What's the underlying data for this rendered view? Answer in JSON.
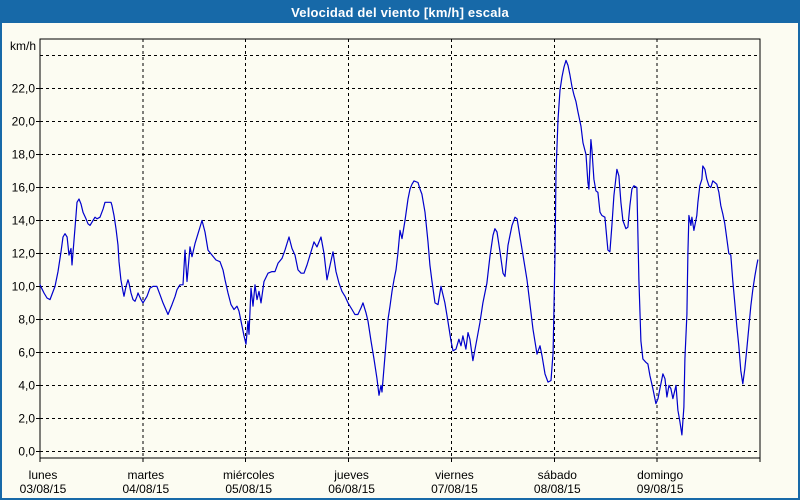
{
  "window": {
    "title": "Velocidad del viento [km/h] escala"
  },
  "colors": {
    "frame": "#1769A8",
    "titlebar_bg": "#1769A8",
    "title_text": "#FFFFFF",
    "background": "#FCFCF2",
    "plot_border": "#000000",
    "gridline": "#000000",
    "line": "#0000CC",
    "tick_text": "#000000"
  },
  "chart_data": {
    "type": "line",
    "title": "Velocidad del viento [km/h] escala",
    "ylabel": "km/h",
    "ylim": [
      -0.4,
      25.0
    ],
    "grid": "dashed",
    "legend": "none",
    "y_gridline_step": 2,
    "y_gridline_max": 24,
    "y_tick_labels": [
      "0,0",
      "2,0",
      "4,0",
      "6,0",
      "8,0",
      "10,0",
      "12,0",
      "14,0",
      "16,0",
      "18,0",
      "20,0",
      "22,0"
    ],
    "x_range_days": [
      0,
      7
    ],
    "x_categories": [
      {
        "weekday": "lunes",
        "date": "03/08/15"
      },
      {
        "weekday": "martes",
        "date": "04/08/15"
      },
      {
        "weekday": "miércoles",
        "date": "05/08/15"
      },
      {
        "weekday": "jueves",
        "date": "06/08/15"
      },
      {
        "weekday": "viernes",
        "date": "07/08/15"
      },
      {
        "weekday": "sábado",
        "date": "08/08/15"
      },
      {
        "weekday": "domingo",
        "date": "09/08/15"
      }
    ],
    "series": [
      {
        "name": "Velocidad del viento",
        "color": "#0000CC",
        "points": [
          [
            0,
            10.1
          ],
          [
            0.039,
            9.6
          ],
          [
            0.068,
            9.3
          ],
          [
            0.097,
            9.2
          ],
          [
            0.146,
            10.0
          ],
          [
            0.175,
            10.9
          ],
          [
            0.204,
            12.1
          ],
          [
            0.224,
            13.0
          ],
          [
            0.243,
            13.2
          ],
          [
            0.263,
            13.0
          ],
          [
            0.282,
            11.9
          ],
          [
            0.301,
            12.3
          ],
          [
            0.311,
            11.3
          ],
          [
            0.331,
            12.8
          ],
          [
            0.35,
            14.3
          ],
          [
            0.36,
            15.1
          ],
          [
            0.379,
            15.3
          ],
          [
            0.399,
            15.0
          ],
          [
            0.418,
            14.5
          ],
          [
            0.447,
            14.1
          ],
          [
            0.467,
            13.8
          ],
          [
            0.486,
            13.7
          ],
          [
            0.515,
            14.0
          ],
          [
            0.535,
            14.2
          ],
          [
            0.554,
            14.1
          ],
          [
            0.583,
            14.2
          ],
          [
            0.613,
            14.7
          ],
          [
            0.632,
            15.1
          ],
          [
            0.651,
            15.1
          ],
          [
            0.69,
            15.1
          ],
          [
            0.7,
            14.9
          ],
          [
            0.719,
            14.3
          ],
          [
            0.739,
            13.5
          ],
          [
            0.758,
            12.5
          ],
          [
            0.768,
            11.5
          ],
          [
            0.787,
            10.4
          ],
          [
            0.807,
            9.7
          ],
          [
            0.817,
            9.4
          ],
          [
            0.836,
            10.0
          ],
          [
            0.856,
            10.4
          ],
          [
            0.865,
            10.2
          ],
          [
            0.885,
            9.6
          ],
          [
            0.904,
            9.2
          ],
          [
            0.924,
            9.1
          ],
          [
            0.943,
            9.4
          ],
          [
            0.953,
            9.6
          ],
          [
            0.982,
            9.2
          ],
          [
            1.001,
            9.0
          ],
          [
            1.04,
            9.4
          ],
          [
            1.069,
            9.9
          ],
          [
            1.099,
            10.0
          ],
          [
            1.137,
            10.0
          ],
          [
            1.167,
            9.5
          ],
          [
            1.196,
            9.0
          ],
          [
            1.244,
            8.3
          ],
          [
            1.283,
            8.9
          ],
          [
            1.313,
            9.4
          ],
          [
            1.332,
            9.8
          ],
          [
            1.361,
            10.1
          ],
          [
            1.39,
            10.1
          ],
          [
            1.41,
            12.2
          ],
          [
            1.429,
            10.3
          ],
          [
            1.458,
            12.4
          ],
          [
            1.478,
            11.8
          ],
          [
            1.507,
            12.6
          ],
          [
            1.536,
            13.2
          ],
          [
            1.575,
            14.0
          ],
          [
            1.604,
            13.3
          ],
          [
            1.633,
            12.2
          ],
          [
            1.672,
            11.9
          ],
          [
            1.711,
            11.6
          ],
          [
            1.75,
            11.5
          ],
          [
            1.779,
            11.0
          ],
          [
            1.799,
            10.4
          ],
          [
            1.828,
            9.6
          ],
          [
            1.857,
            8.9
          ],
          [
            1.886,
            8.6
          ],
          [
            1.915,
            8.8
          ],
          [
            1.935,
            8.5
          ],
          [
            1.964,
            7.6
          ],
          [
            1.983,
            7.0
          ],
          [
            2.003,
            6.5
          ],
          [
            2.022,
            7.9
          ],
          [
            2.032,
            7.1
          ],
          [
            2.051,
            9.9
          ],
          [
            2.071,
            8.8
          ],
          [
            2.09,
            10.1
          ],
          [
            2.11,
            9.2
          ],
          [
            2.129,
            9.7
          ],
          [
            2.149,
            9.0
          ],
          [
            2.178,
            10.3
          ],
          [
            2.217,
            10.8
          ],
          [
            2.256,
            10.9
          ],
          [
            2.285,
            10.9
          ],
          [
            2.314,
            11.4
          ],
          [
            2.353,
            11.7
          ],
          [
            2.382,
            12.2
          ],
          [
            2.421,
            13.0
          ],
          [
            2.45,
            12.3
          ],
          [
            2.479,
            11.9
          ],
          [
            2.508,
            11.0
          ],
          [
            2.538,
            10.8
          ],
          [
            2.567,
            10.8
          ],
          [
            2.596,
            11.3
          ],
          [
            2.625,
            11.9
          ],
          [
            2.664,
            12.7
          ],
          [
            2.693,
            12.4
          ],
          [
            2.732,
            13.0
          ],
          [
            2.761,
            12.0
          ],
          [
            2.79,
            10.4
          ],
          [
            2.82,
            11.3
          ],
          [
            2.849,
            12.1
          ],
          [
            2.878,
            10.9
          ],
          [
            2.907,
            10.2
          ],
          [
            2.936,
            9.7
          ],
          [
            2.965,
            9.4
          ],
          [
            2.994,
            9.0
          ],
          [
            3.033,
            8.6
          ],
          [
            3.062,
            8.3
          ],
          [
            3.091,
            8.3
          ],
          [
            3.121,
            8.7
          ],
          [
            3.14,
            9.0
          ],
          [
            3.169,
            8.4
          ],
          [
            3.189,
            7.9
          ],
          [
            3.218,
            6.7
          ],
          [
            3.247,
            5.6
          ],
          [
            3.276,
            4.4
          ],
          [
            3.296,
            3.4
          ],
          [
            3.315,
            4.0
          ],
          [
            3.325,
            3.6
          ],
          [
            3.354,
            5.8
          ],
          [
            3.383,
            8.0
          ],
          [
            3.403,
            8.8
          ],
          [
            3.422,
            9.7
          ],
          [
            3.442,
            10.4
          ],
          [
            3.461,
            11.0
          ],
          [
            3.48,
            12.0
          ],
          [
            3.5,
            13.4
          ],
          [
            3.519,
            12.9
          ],
          [
            3.549,
            14.0
          ],
          [
            3.578,
            15.3
          ],
          [
            3.597,
            15.9
          ],
          [
            3.617,
            16.2
          ],
          [
            3.636,
            16.4
          ],
          [
            3.675,
            16.3
          ],
          [
            3.694,
            15.9
          ],
          [
            3.713,
            15.6
          ],
          [
            3.743,
            14.5
          ],
          [
            3.772,
            12.7
          ],
          [
            3.791,
            11.3
          ],
          [
            3.811,
            10.3
          ],
          [
            3.84,
            9.0
          ],
          [
            3.869,
            8.9
          ],
          [
            3.899,
            10.0
          ],
          [
            3.937,
            9.0
          ],
          [
            3.966,
            7.9
          ],
          [
            3.996,
            6.7
          ],
          [
            4.015,
            6.1
          ],
          [
            4.044,
            6.2
          ],
          [
            4.073,
            6.8
          ],
          [
            4.093,
            6.4
          ],
          [
            4.112,
            7.0
          ],
          [
            4.141,
            6.2
          ],
          [
            4.161,
            7.2
          ],
          [
            4.18,
            6.8
          ],
          [
            4.209,
            5.5
          ],
          [
            4.248,
            6.8
          ],
          [
            4.277,
            7.8
          ],
          [
            4.306,
            9.0
          ],
          [
            4.345,
            10.2
          ],
          [
            4.374,
            11.8
          ],
          [
            4.404,
            13.1
          ],
          [
            4.423,
            13.5
          ],
          [
            4.443,
            13.3
          ],
          [
            4.472,
            12.1
          ],
          [
            4.501,
            10.8
          ],
          [
            4.521,
            10.6
          ],
          [
            4.55,
            12.5
          ],
          [
            4.589,
            13.7
          ],
          [
            4.618,
            14.2
          ],
          [
            4.638,
            14.1
          ],
          [
            4.667,
            13.0
          ],
          [
            4.696,
            11.9
          ],
          [
            4.735,
            10.4
          ],
          [
            4.764,
            8.9
          ],
          [
            4.793,
            7.4
          ],
          [
            4.832,
            5.9
          ],
          [
            4.861,
            6.4
          ],
          [
            4.881,
            5.8
          ],
          [
            4.91,
            4.7
          ],
          [
            4.939,
            4.2
          ],
          [
            4.968,
            4.3
          ],
          [
            4.988,
            6.0
          ],
          [
            5.007,
            11.9
          ],
          [
            5.017,
            16.9
          ],
          [
            5.036,
            20.1
          ],
          [
            5.056,
            21.9
          ],
          [
            5.075,
            22.7
          ],
          [
            5.094,
            23.3
          ],
          [
            5.114,
            23.7
          ],
          [
            5.133,
            23.4
          ],
          [
            5.153,
            22.8
          ],
          [
            5.172,
            22.1
          ],
          [
            5.192,
            21.6
          ],
          [
            5.211,
            21.2
          ],
          [
            5.23,
            20.6
          ],
          [
            5.26,
            19.7
          ],
          [
            5.279,
            18.7
          ],
          [
            5.308,
            18.0
          ],
          [
            5.327,
            16.3
          ],
          [
            5.337,
            15.9
          ],
          [
            5.356,
            18.9
          ],
          [
            5.366,
            18.3
          ],
          [
            5.385,
            16.5
          ],
          [
            5.405,
            15.8
          ],
          [
            5.424,
            15.7
          ],
          [
            5.444,
            14.5
          ],
          [
            5.463,
            14.3
          ],
          [
            5.492,
            14.2
          ],
          [
            5.521,
            12.2
          ],
          [
            5.541,
            12.1
          ],
          [
            5.56,
            13.7
          ],
          [
            5.58,
            15.5
          ],
          [
            5.609,
            17.1
          ],
          [
            5.628,
            16.7
          ],
          [
            5.648,
            15.1
          ],
          [
            5.667,
            14.0
          ],
          [
            5.696,
            13.5
          ],
          [
            5.716,
            13.6
          ],
          [
            5.735,
            14.9
          ],
          [
            5.755,
            15.9
          ],
          [
            5.774,
            16.1
          ],
          [
            5.803,
            16.0
          ],
          [
            5.823,
            10.4
          ],
          [
            5.842,
            6.7
          ],
          [
            5.862,
            5.6
          ],
          [
            5.891,
            5.4
          ],
          [
            5.91,
            5.3
          ],
          [
            5.93,
            4.6
          ],
          [
            5.959,
            3.8
          ],
          [
            5.988,
            2.9
          ],
          [
            6.008,
            3.2
          ],
          [
            6.027,
            3.8
          ],
          [
            6.056,
            4.7
          ],
          [
            6.076,
            4.4
          ],
          [
            6.095,
            3.3
          ],
          [
            6.115,
            4.0
          ],
          [
            6.134,
            3.8
          ],
          [
            6.153,
            3.2
          ],
          [
            6.183,
            4.0
          ],
          [
            6.202,
            2.5
          ],
          [
            6.221,
            1.8
          ],
          [
            6.241,
            1.0
          ],
          [
            6.26,
            2.7
          ],
          [
            6.27,
            5.6
          ],
          [
            6.289,
            8.3
          ],
          [
            6.299,
            12.0
          ],
          [
            6.309,
            14.3
          ],
          [
            6.328,
            13.7
          ],
          [
            6.338,
            14.2
          ],
          [
            6.357,
            13.4
          ],
          [
            6.386,
            14.3
          ],
          [
            6.396,
            15.1
          ],
          [
            6.415,
            16.1
          ],
          [
            6.435,
            16.5
          ],
          [
            6.444,
            17.3
          ],
          [
            6.464,
            17.1
          ],
          [
            6.483,
            16.5
          ],
          [
            6.503,
            16.1
          ],
          [
            6.522,
            16.0
          ],
          [
            6.541,
            16.4
          ],
          [
            6.561,
            16.3
          ],
          [
            6.58,
            16.2
          ],
          [
            6.6,
            15.7
          ],
          [
            6.619,
            14.9
          ],
          [
            6.638,
            14.4
          ],
          [
            6.658,
            13.8
          ],
          [
            6.677,
            12.9
          ],
          [
            6.697,
            12.0
          ],
          [
            6.716,
            11.9
          ],
          [
            6.735,
            10.4
          ],
          [
            6.755,
            9.0
          ],
          [
            6.774,
            7.6
          ],
          [
            6.794,
            6.4
          ],
          [
            6.813,
            4.9
          ],
          [
            6.833,
            4.1
          ],
          [
            6.852,
            5.0
          ],
          [
            6.872,
            6.2
          ],
          [
            6.891,
            7.5
          ],
          [
            6.911,
            8.8
          ],
          [
            6.93,
            9.8
          ],
          [
            6.949,
            10.6
          ],
          [
            6.969,
            11.3
          ],
          [
            6.979,
            11.6
          ]
        ]
      }
    ]
  }
}
